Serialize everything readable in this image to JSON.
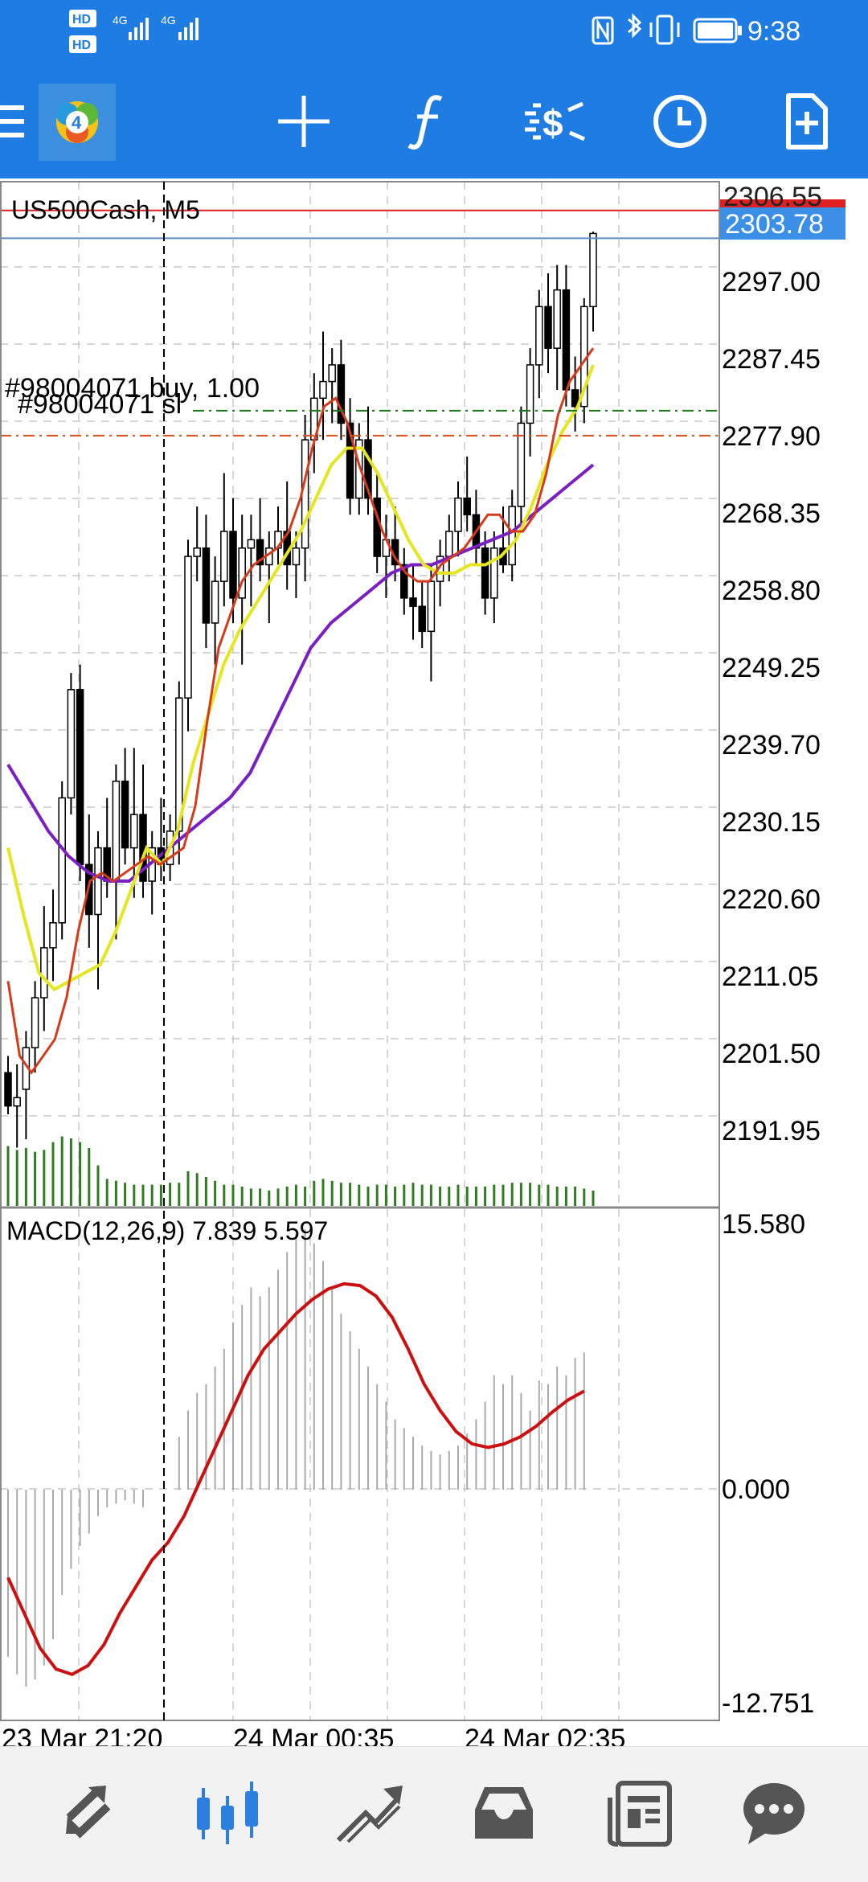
{
  "status_bar": {
    "time": "9:38",
    "sim1": "HD",
    "sim2": "HD",
    "net1": "4G",
    "net2": "4G"
  },
  "chart": {
    "title": "US500Cash, M5",
    "current_price": "2303.78",
    "hidden_price_label": "2306.55",
    "order_label": "#98004071 buy, 1.00",
    "sl_label": "#98004071 sl",
    "price_ticks": [
      "2297.00",
      "2287.45",
      "2277.90",
      "2268.35",
      "2258.80",
      "2249.25",
      "2239.70",
      "2230.15",
      "2220.60",
      "2211.05",
      "2201.50",
      "2191.95"
    ],
    "macd_label": "MACD(12,26,9) 7.839 5.597",
    "macd_ticks": [
      "15.580",
      "0.000",
      "-12.751"
    ],
    "time_labels": [
      "23 Mar 21:20",
      "24 Mar 00:35",
      "24 Mar 02:35"
    ]
  },
  "colors": {
    "accent": "#1f7ce3",
    "price_line": "#e02020",
    "ma_fast": "#d63a1a",
    "ma_mid": "#e6e620",
    "ma_slow": "#7a1fc2",
    "volume": "#2e7d20",
    "signal": "#cc1010"
  },
  "icons": {
    "menu": "hamburger-menu-icon",
    "logo": "metatrader-logo-icon",
    "crosshair": "crosshair-icon",
    "indicators": "function-icon",
    "trade": "trade-dollar-icon",
    "timeframe": "clock-icon",
    "new_order": "new-document-icon",
    "quotes": "quotes-arrows-icon",
    "chart": "candlestick-chart-icon",
    "trade_tab": "trade-trend-icon",
    "history": "inbox-icon",
    "news": "news-icon",
    "chat": "chat-bubble-icon"
  },
  "chart_data": {
    "type": "candlestick",
    "symbol": "US500Cash",
    "timeframe": "M5",
    "y_range": [
      2187.0,
      2310.0
    ],
    "macd_range": [
      -12.751,
      15.58
    ],
    "last_price": 2303.78,
    "buy_level": 2282.5,
    "sl_level": 2279.5,
    "candles": [
      [
        2203,
        2205,
        2198,
        2199
      ],
      [
        2199,
        2204,
        2194,
        2200
      ],
      [
        2201,
        2208,
        2195,
        2206
      ],
      [
        2206,
        2214,
        2203,
        2212
      ],
      [
        2212,
        2223,
        2208,
        2218
      ],
      [
        2218,
        2225,
        2214,
        2221
      ],
      [
        2221,
        2238,
        2219,
        2236
      ],
      [
        2236,
        2251,
        2234,
        2249
      ],
      [
        2249,
        2252,
        2226,
        2228
      ],
      [
        2228,
        2234,
        2218,
        2222
      ],
      [
        2222,
        2232,
        2213,
        2230
      ],
      [
        2230,
        2236,
        2224,
        2226
      ],
      [
        2226,
        2240,
        2219,
        2238
      ],
      [
        2238,
        2242,
        2228,
        2230
      ],
      [
        2230,
        2242,
        2224,
        2234
      ],
      [
        2234,
        2240,
        2224,
        2226
      ],
      [
        2226,
        2232,
        2222,
        2230
      ],
      [
        2230,
        2236,
        2226,
        2228
      ],
      [
        2228,
        2234,
        2226,
        2232
      ],
      [
        2232,
        2250,
        2228,
        2248
      ],
      [
        2248,
        2267,
        2244,
        2265
      ],
      [
        2265,
        2271,
        2262,
        2266
      ],
      [
        2266,
        2270,
        2254,
        2257
      ],
      [
        2257,
        2265,
        2252,
        2262
      ],
      [
        2262,
        2275,
        2259,
        2268
      ],
      [
        2268,
        2272,
        2257,
        2260
      ],
      [
        2260,
        2270,
        2252,
        2266
      ],
      [
        2266,
        2270,
        2259,
        2267
      ],
      [
        2267,
        2272,
        2262,
        2264
      ],
      [
        2264,
        2268,
        2257,
        2266
      ],
      [
        2266,
        2271,
        2264,
        2268
      ],
      [
        2268,
        2274,
        2261,
        2264
      ],
      [
        2264,
        2268,
        2260,
        2266
      ],
      [
        2266,
        2282,
        2262,
        2279
      ],
      [
        2279,
        2287,
        2275,
        2284
      ],
      [
        2284,
        2292,
        2279,
        2286
      ],
      [
        2286,
        2290,
        2281,
        2288
      ],
      [
        2288,
        2291,
        2279,
        2281
      ],
      [
        2281,
        2284,
        2270,
        2272
      ],
      [
        2272,
        2281,
        2270,
        2279
      ],
      [
        2279,
        2283,
        2270,
        2272
      ],
      [
        2272,
        2275,
        2263,
        2265
      ],
      [
        2265,
        2270,
        2260,
        2267
      ],
      [
        2267,
        2271,
        2262,
        2264
      ],
      [
        2264,
        2266,
        2258,
        2260
      ],
      [
        2260,
        2264,
        2255,
        2259
      ],
      [
        2259,
        2262,
        2254,
        2256
      ],
      [
        2256,
        2264,
        2250,
        2262
      ],
      [
        2262,
        2267,
        2259,
        2265
      ],
      [
        2265,
        2270,
        2262,
        2268
      ],
      [
        2268,
        2274,
        2265,
        2272
      ],
      [
        2272,
        2277,
        2268,
        2270
      ],
      [
        2270,
        2273,
        2264,
        2266
      ],
      [
        2266,
        2268,
        2258,
        2260
      ],
      [
        2260,
        2268,
        2257,
        2266
      ],
      [
        2266,
        2271,
        2263,
        2264
      ],
      [
        2264,
        2273,
        2262,
        2271
      ],
      [
        2271,
        2283,
        2268,
        2281
      ],
      [
        2281,
        2290,
        2277,
        2288
      ],
      [
        2288,
        2297,
        2284,
        2295
      ],
      [
        2295,
        2299,
        2287,
        2290
      ],
      [
        2290,
        2300,
        2285,
        2297
      ],
      [
        2297,
        2300,
        2283,
        2285
      ],
      [
        2285,
        2289,
        2280,
        2283
      ],
      [
        2283,
        2296,
        2281,
        2295
      ],
      [
        2295,
        2304,
        2292,
        2303.78
      ]
    ],
    "ma_fast": [
      2214,
      2205,
      2203,
      2205,
      2207,
      2212,
      2220,
      2226,
      2227,
      2226,
      2227,
      2228,
      2229,
      2228,
      2229,
      2230,
      2235,
      2245,
      2254,
      2258,
      2262,
      2264,
      2265,
      2266,
      2268,
      2272,
      2278,
      2283,
      2284,
      2281,
      2276,
      2272,
      2268,
      2265,
      2263,
      2262,
      2262,
      2264,
      2265,
      2266,
      2268,
      2270,
      2270,
      2268,
      2268,
      2270,
      2275,
      2282,
      2286,
      2288,
      2290
    ],
    "ma_mid": [
      2230,
      2222,
      2215,
      2213,
      2214,
      2215,
      2216,
      2220,
      2225,
      2230,
      2228,
      2232,
      2240,
      2246,
      2252,
      2256,
      2259,
      2262,
      2265,
      2268,
      2272,
      2276,
      2278,
      2278,
      2275,
      2271,
      2267,
      2264,
      2263,
      2263,
      2264,
      2264,
      2265,
      2267,
      2271,
      2276,
      2280,
      2283,
      2288
    ],
    "ma_slow": [
      2240,
      2236,
      2232,
      2229,
      2227,
      2226,
      2226,
      2228,
      2230,
      2232,
      2234,
      2236,
      2239,
      2244,
      2249,
      2254,
      2257,
      2259,
      2261,
      2263,
      2264,
      2264,
      2265,
      2266,
      2267,
      2268,
      2270,
      2272,
      2274,
      2276
    ],
    "volume": [
      62,
      58,
      60,
      56,
      58,
      66,
      72,
      70,
      66,
      60,
      42,
      28,
      26,
      24,
      22,
      22,
      22,
      22,
      24,
      24,
      36,
      34,
      30,
      26,
      22,
      22,
      20,
      18,
      18,
      16,
      18,
      20,
      22,
      20,
      26,
      28,
      26,
      24,
      24,
      22,
      20,
      22,
      22,
      20,
      22,
      24,
      22,
      22,
      20,
      20,
      22,
      20,
      20,
      20,
      22,
      22,
      24,
      24,
      24,
      22,
      22,
      20,
      20,
      20,
      18,
      16
    ],
    "macd_hist": [
      -9.5,
      -10.5,
      -11.2,
      -10.8,
      -10.0,
      -8.5,
      -6.0,
      -4.5,
      -3.2,
      -2.5,
      -1.5,
      -1.0,
      -0.8,
      -0.6,
      -0.8,
      -1.0,
      0,
      0,
      0,
      3.0,
      4.5,
      5.5,
      6.0,
      7.0,
      8.0,
      9.5,
      10.5,
      11.5,
      11.0,
      11.5,
      12.5,
      13.5,
      14.5,
      14.8,
      14.0,
      13.0,
      11.5,
      10.0,
      9.0,
      8.0,
      7.0,
      6.0,
      5.0,
      4.0,
      3.5,
      3.0,
      2.5,
      2.2,
      2.0,
      2.2,
      2.5,
      3.2,
      4.0,
      5.0,
      6.5,
      6.0,
      6.5,
      5.5,
      4.5,
      6.2,
      6.0,
      7.0,
      6.5,
      7.5,
      7.8
    ],
    "macd_signal": [
      -5.0,
      -7.0,
      -9.0,
      -10.2,
      -10.5,
      -10.0,
      -8.8,
      -7.0,
      -5.5,
      -4.0,
      -3.0,
      -1.5,
      0.5,
      2.5,
      4.5,
      6.5,
      8.0,
      9.0,
      10.0,
      10.8,
      11.4,
      11.7,
      11.6,
      11.0,
      9.8,
      8.0,
      6.0,
      4.5,
      3.3,
      2.6,
      2.4,
      2.6,
      3.0,
      3.6,
      4.4,
      5.1,
      5.6
    ]
  }
}
